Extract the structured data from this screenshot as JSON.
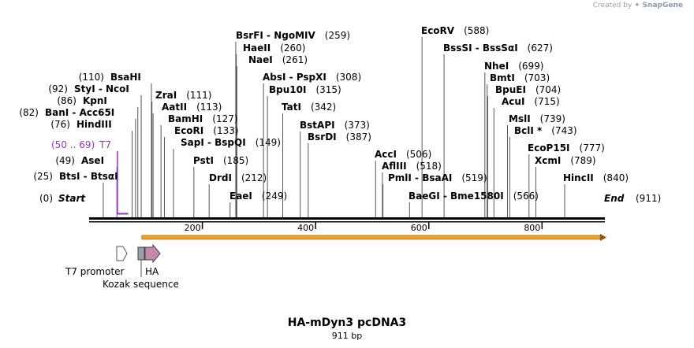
{
  "credit": {
    "prefix": "Created by",
    "brand": "SnapGene"
  },
  "map": {
    "title": "HA-mDyn3 pcDNA3",
    "length_label": "911 bp",
    "length": 911,
    "start_label": "Start",
    "start_pos": "(0)",
    "end_label": "End",
    "end_pos": "(911)",
    "ticks": [
      "200",
      "400",
      "600",
      "800"
    ],
    "tick_values": [
      200,
      400,
      600,
      800
    ]
  },
  "primer": {
    "range": "(50 .. 69)",
    "name": "T7",
    "start": 50,
    "end": 69,
    "color": "#9b30d9"
  },
  "features": [
    {
      "name": "T7 promoter",
      "icon": "open-arrow-icon"
    },
    {
      "name": "Kozak sequence",
      "icon": "grey-box-icon"
    },
    {
      "name": "HA",
      "icon": "pink-arrow-icon"
    }
  ],
  "orf": {
    "start": 93,
    "end": 911,
    "color": "#f0a020"
  },
  "sites": [
    {
      "label": "BtsI  -  BtsαI",
      "pos": "(25)",
      "p": 25
    },
    {
      "label": "AseI",
      "pos": "(49)",
      "p": 49
    },
    {
      "label": "HindIII",
      "pos": "(76)",
      "p": 76
    },
    {
      "label": "BanI  -  Acc65I",
      "pos": "(82)",
      "p": 82
    },
    {
      "label": "KpnI",
      "pos": "(86)",
      "p": 86
    },
    {
      "label": "StyI  -  NcoI",
      "pos": "(92)",
      "p": 92
    },
    {
      "label": "BsaHI",
      "pos": "(110)",
      "p": 110
    },
    {
      "label": "ZraI",
      "pos": "(111)",
      "p": 111
    },
    {
      "label": "AatII",
      "pos": "(113)",
      "p": 113
    },
    {
      "label": "BamHI",
      "pos": "(127)",
      "p": 127
    },
    {
      "label": "EcoRI",
      "pos": "(133)",
      "p": 133
    },
    {
      "label": "SapI  -  BspQI",
      "pos": "(149)",
      "p": 149
    },
    {
      "label": "PstI",
      "pos": "(185)",
      "p": 185
    },
    {
      "label": "DrdI",
      "pos": "(212)",
      "p": 212
    },
    {
      "label": "EaeI",
      "pos": "(249)",
      "p": 249
    },
    {
      "label": "BsrFI  -  NgoMIV",
      "pos": "(259)",
      "p": 259
    },
    {
      "label": "HaeII",
      "pos": "(260)",
      "p": 260
    },
    {
      "label": "NaeI",
      "pos": "(261)",
      "p": 261
    },
    {
      "label": "AbsI  -  PspXI",
      "pos": "(308)",
      "p": 308
    },
    {
      "label": "Bpu10I",
      "pos": "(315)",
      "p": 315
    },
    {
      "label": "TatI",
      "pos": "(342)",
      "p": 342
    },
    {
      "label": "BstAPI",
      "pos": "(373)",
      "p": 373
    },
    {
      "label": "BsrDI",
      "pos": "(387)",
      "p": 387
    },
    {
      "label": "AccI",
      "pos": "(506)",
      "p": 506
    },
    {
      "label": "AflIII",
      "pos": "(518)",
      "p": 518
    },
    {
      "label": "PmlI  -  BsaAI",
      "pos": "(519)",
      "p": 519
    },
    {
      "label": "BaeGI  -  Bme1580I",
      "pos": "(566)",
      "p": 566
    },
    {
      "label": "EcoRV",
      "pos": "(588)",
      "p": 588
    },
    {
      "label": "BssSI  -  BssSαI",
      "pos": "(627)",
      "p": 627
    },
    {
      "label": "NheI",
      "pos": "(699)",
      "p": 699
    },
    {
      "label": "BmtI",
      "pos": "(703)",
      "p": 703
    },
    {
      "label": "BpuEI",
      "pos": "(704)",
      "p": 704
    },
    {
      "label": "AcuI",
      "pos": "(715)",
      "p": 715
    },
    {
      "label": "MslI",
      "pos": "(739)",
      "p": 739
    },
    {
      "label": "BclI *",
      "pos": "(743)",
      "p": 743
    },
    {
      "label": "EcoP15I",
      "pos": "(777)",
      "p": 777
    },
    {
      "label": "XcmI",
      "pos": "(789)",
      "p": 789
    },
    {
      "label": "HincII",
      "pos": "(840)",
      "p": 840
    }
  ]
}
